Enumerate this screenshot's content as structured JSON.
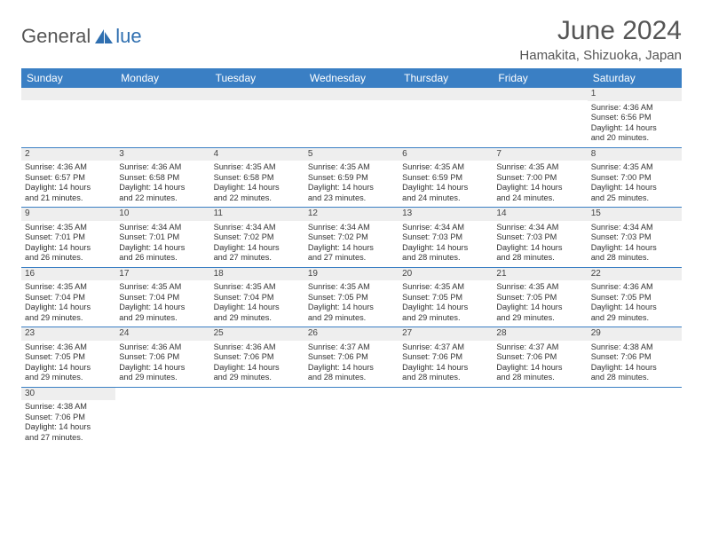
{
  "logo": {
    "text1": "General",
    "text2": "lue"
  },
  "title": "June 2024",
  "location": "Hamakita, Shizuoka, Japan",
  "colors": {
    "header_bg": "#3a7fc4",
    "header_text": "#ffffff",
    "band_bg": "#eeeeee",
    "border": "#3a7fc4",
    "logo_blue": "#2f6fb0",
    "logo_gray": "#555555"
  },
  "day_headers": [
    "Sunday",
    "Monday",
    "Tuesday",
    "Wednesday",
    "Thursday",
    "Friday",
    "Saturday"
  ],
  "weeks": [
    [
      null,
      null,
      null,
      null,
      null,
      null,
      {
        "n": "1",
        "sr": "4:36 AM",
        "ss": "6:56 PM",
        "dh": "14",
        "dm": "20"
      }
    ],
    [
      {
        "n": "2",
        "sr": "4:36 AM",
        "ss": "6:57 PM",
        "dh": "14",
        "dm": "21"
      },
      {
        "n": "3",
        "sr": "4:36 AM",
        "ss": "6:58 PM",
        "dh": "14",
        "dm": "22"
      },
      {
        "n": "4",
        "sr": "4:35 AM",
        "ss": "6:58 PM",
        "dh": "14",
        "dm": "22"
      },
      {
        "n": "5",
        "sr": "4:35 AM",
        "ss": "6:59 PM",
        "dh": "14",
        "dm": "23"
      },
      {
        "n": "6",
        "sr": "4:35 AM",
        "ss": "6:59 PM",
        "dh": "14",
        "dm": "24"
      },
      {
        "n": "7",
        "sr": "4:35 AM",
        "ss": "7:00 PM",
        "dh": "14",
        "dm": "24"
      },
      {
        "n": "8",
        "sr": "4:35 AM",
        "ss": "7:00 PM",
        "dh": "14",
        "dm": "25"
      }
    ],
    [
      {
        "n": "9",
        "sr": "4:35 AM",
        "ss": "7:01 PM",
        "dh": "14",
        "dm": "26"
      },
      {
        "n": "10",
        "sr": "4:34 AM",
        "ss": "7:01 PM",
        "dh": "14",
        "dm": "26"
      },
      {
        "n": "11",
        "sr": "4:34 AM",
        "ss": "7:02 PM",
        "dh": "14",
        "dm": "27"
      },
      {
        "n": "12",
        "sr": "4:34 AM",
        "ss": "7:02 PM",
        "dh": "14",
        "dm": "27"
      },
      {
        "n": "13",
        "sr": "4:34 AM",
        "ss": "7:03 PM",
        "dh": "14",
        "dm": "28"
      },
      {
        "n": "14",
        "sr": "4:34 AM",
        "ss": "7:03 PM",
        "dh": "14",
        "dm": "28"
      },
      {
        "n": "15",
        "sr": "4:34 AM",
        "ss": "7:03 PM",
        "dh": "14",
        "dm": "28"
      }
    ],
    [
      {
        "n": "16",
        "sr": "4:35 AM",
        "ss": "7:04 PM",
        "dh": "14",
        "dm": "29"
      },
      {
        "n": "17",
        "sr": "4:35 AM",
        "ss": "7:04 PM",
        "dh": "14",
        "dm": "29"
      },
      {
        "n": "18",
        "sr": "4:35 AM",
        "ss": "7:04 PM",
        "dh": "14",
        "dm": "29"
      },
      {
        "n": "19",
        "sr": "4:35 AM",
        "ss": "7:05 PM",
        "dh": "14",
        "dm": "29"
      },
      {
        "n": "20",
        "sr": "4:35 AM",
        "ss": "7:05 PM",
        "dh": "14",
        "dm": "29"
      },
      {
        "n": "21",
        "sr": "4:35 AM",
        "ss": "7:05 PM",
        "dh": "14",
        "dm": "29"
      },
      {
        "n": "22",
        "sr": "4:36 AM",
        "ss": "7:05 PM",
        "dh": "14",
        "dm": "29"
      }
    ],
    [
      {
        "n": "23",
        "sr": "4:36 AM",
        "ss": "7:05 PM",
        "dh": "14",
        "dm": "29"
      },
      {
        "n": "24",
        "sr": "4:36 AM",
        "ss": "7:06 PM",
        "dh": "14",
        "dm": "29"
      },
      {
        "n": "25",
        "sr": "4:36 AM",
        "ss": "7:06 PM",
        "dh": "14",
        "dm": "29"
      },
      {
        "n": "26",
        "sr": "4:37 AM",
        "ss": "7:06 PM",
        "dh": "14",
        "dm": "28"
      },
      {
        "n": "27",
        "sr": "4:37 AM",
        "ss": "7:06 PM",
        "dh": "14",
        "dm": "28"
      },
      {
        "n": "28",
        "sr": "4:37 AM",
        "ss": "7:06 PM",
        "dh": "14",
        "dm": "28"
      },
      {
        "n": "29",
        "sr": "4:38 AM",
        "ss": "7:06 PM",
        "dh": "14",
        "dm": "28"
      }
    ],
    [
      {
        "n": "30",
        "sr": "4:38 AM",
        "ss": "7:06 PM",
        "dh": "14",
        "dm": "27"
      },
      null,
      null,
      null,
      null,
      null,
      null
    ]
  ],
  "labels": {
    "sunrise": "Sunrise: ",
    "sunset": "Sunset: ",
    "daylight": "Daylight: ",
    "hours": " hours",
    "and": "and ",
    "minutes": " minutes."
  }
}
